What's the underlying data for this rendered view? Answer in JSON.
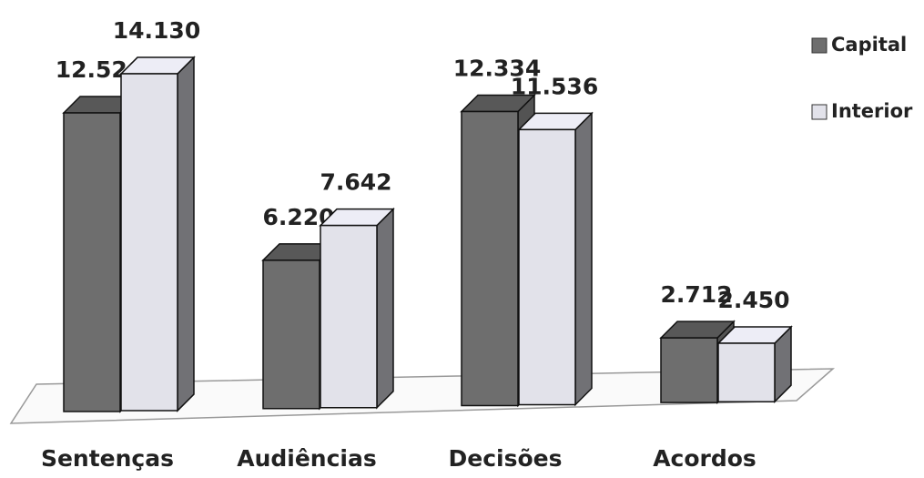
{
  "chart_data": {
    "type": "bar3d",
    "categories": [
      "Sentenças",
      "Audiências",
      "Decisões",
      "Acordos"
    ],
    "series": [
      {
        "name": "Capital",
        "color": "#6e6e6e",
        "values": [
          12526,
          6220,
          12334,
          2712
        ],
        "value_labels": [
          "12.526",
          "6.220",
          "12.334",
          "2.712"
        ]
      },
      {
        "name": "Interior",
        "color": "#e2e2ea",
        "values": [
          14130,
          7642,
          11536,
          2450
        ],
        "value_labels": [
          "14.130",
          "7.642",
          "11.536",
          "2.450"
        ]
      }
    ],
    "legend": "right"
  }
}
